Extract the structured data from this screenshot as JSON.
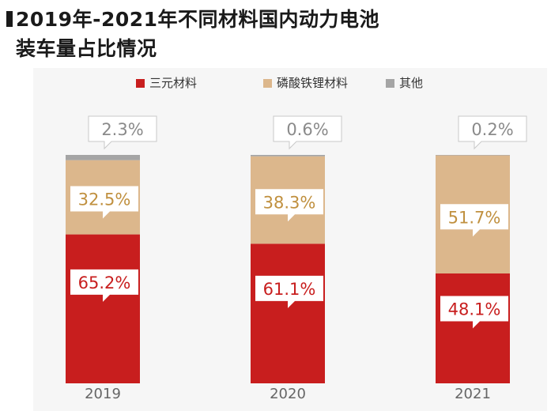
{
  "title_line1": "2019年-2021年不同材料国内动力电池",
  "title_line2": "装车量占比情况",
  "colors": {
    "ternary": "#c81e1e",
    "lfp": "#dcb78c",
    "other": "#a5a5a5",
    "label_text_red": "#c81e1e",
    "label_text_gold": "#c0903f",
    "label_text_gray": "#8a8a8a"
  },
  "chart_data": {
    "type": "bar",
    "stacked": true,
    "categories": [
      "2019",
      "2020",
      "2021"
    ],
    "series": [
      {
        "name": "三元材料",
        "values": [
          65.2,
          61.1,
          48.1
        ]
      },
      {
        "name": "磷酸铁锂材料",
        "values": [
          32.5,
          38.3,
          51.7
        ]
      },
      {
        "name": "其他",
        "values": [
          2.3,
          0.6,
          0.2
        ]
      }
    ],
    "data_labels": [
      [
        "65.2%",
        "32.5%",
        "2.3%"
      ],
      [
        "61.1%",
        "38.3%",
        "0.6%"
      ],
      [
        "48.1%",
        "51.7%",
        "0.2%"
      ]
    ],
    "ylim": [
      0,
      100
    ],
    "legend_position": "top",
    "grid": false,
    "xlabel": "",
    "ylabel": ""
  }
}
